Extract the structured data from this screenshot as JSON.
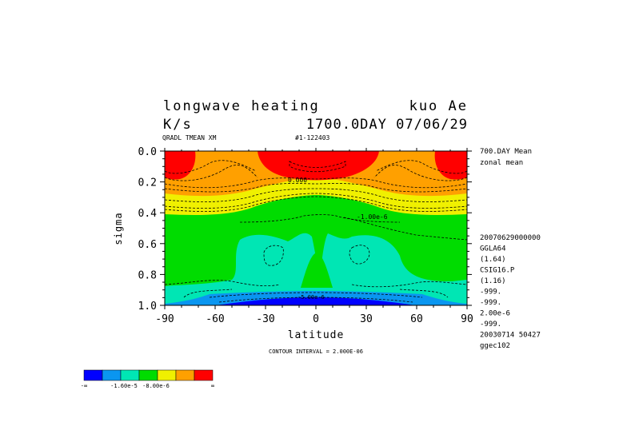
{
  "chart_data": {
    "type": "heatmap",
    "title_line1_left": "longwave heating",
    "title_line1_right": "kuo Ae",
    "title_line2_left": "K/s",
    "title_line2_right": "1700.0DAY 07/06/29",
    "subtitle_left": "QRADL TMEAN XM",
    "subtitle_right": "#1-122403",
    "xlabel": "latitude",
    "ylabel": "sigma",
    "xlim": [
      -90,
      90
    ],
    "ylim": [
      0.0,
      1.0
    ],
    "y_inverted": true,
    "x_ticks": [
      "-90",
      "-60",
      "-30",
      "0",
      "30",
      "60",
      "90"
    ],
    "y_ticks": [
      "0.0",
      "0.2",
      "0.4",
      "0.6",
      "0.8",
      "1.0"
    ],
    "contour_interval": "CONTOUR INTERVAL = 2.000E-06",
    "contour_labels": [
      "0.000",
      "-1.00e-6",
      "-5.00e-6"
    ],
    "side_info_top": [
      "700.DAY Mean",
      "zonal mean"
    ],
    "side_info_bottom": [
      "20070629000000",
      "GGLA64",
      "(1.64)",
      "CSIG16.P",
      "(1.16)",
      "-999.",
      "-999.",
      "2.00e-6",
      "-999.",
      "20030714   50427",
      "ggec102"
    ],
    "colorbar": {
      "colors": [
        "#0000ff",
        "#0a96f0",
        "#00e6b4",
        "#00dc00",
        "#f0f000",
        "#ffa000",
        "#ff0000"
      ],
      "labels": [
        "-∞",
        "-1.60e-5",
        "-8.00e-6",
        "∞"
      ]
    },
    "bands": [
      {
        "level": "red",
        "color": "#ff0000"
      },
      {
        "level": "orange",
        "color": "#ffa000"
      },
      {
        "level": "yellow",
        "color": "#f0f000"
      },
      {
        "level": "green",
        "color": "#00dc00"
      },
      {
        "level": "teal",
        "color": "#00e6b4"
      },
      {
        "level": "blue",
        "color": "#0a96f0"
      },
      {
        "level": "darkblue",
        "color": "#0000ff"
      }
    ]
  }
}
